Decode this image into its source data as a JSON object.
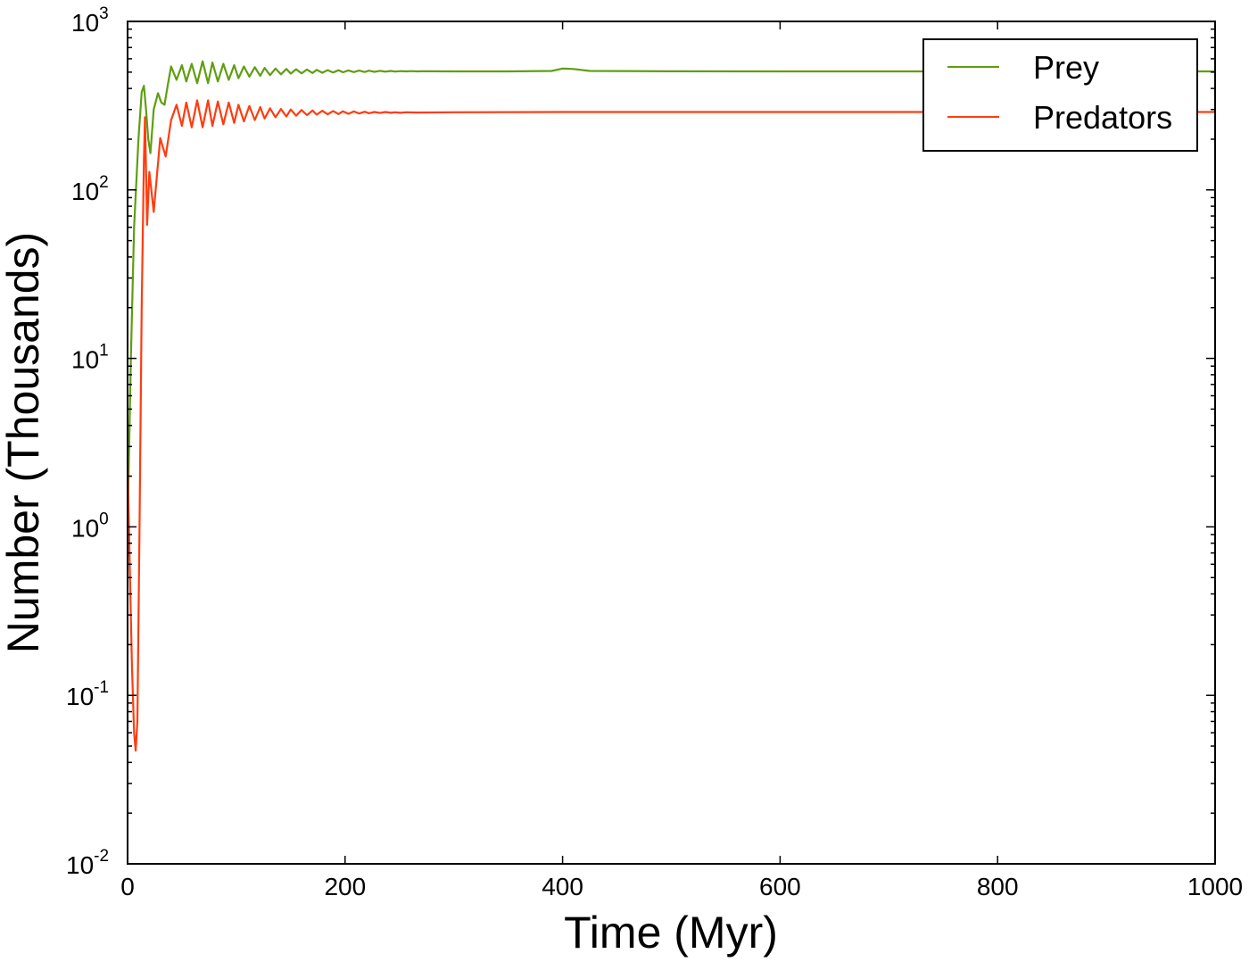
{
  "chart_data": {
    "type": "line",
    "title": "",
    "xlabel": "Time (Myr)",
    "ylabel": "Number (Thousands)",
    "xlim": [
      0,
      1000
    ],
    "ylim": [
      0.01,
      1000
    ],
    "yscale": "log",
    "grid": false,
    "legend_placement": "top-right",
    "x_ticks": [
      0,
      200,
      400,
      600,
      800,
      1000
    ],
    "x_tick_labels": [
      "0",
      "200",
      "400",
      "600",
      "800",
      "1000"
    ],
    "y_ticks": [
      0.01,
      0.1,
      1,
      10,
      100,
      1000
    ],
    "y_tick_labels": [
      {
        "base": "10",
        "exp": "-2"
      },
      {
        "base": "10",
        "exp": "-1"
      },
      {
        "base": "10",
        "exp": "0"
      },
      {
        "base": "10",
        "exp": "1"
      },
      {
        "base": "10",
        "exp": "2"
      },
      {
        "base": "10",
        "exp": "3"
      }
    ],
    "series": [
      {
        "name": "Prey",
        "color": "#5f9e12",
        "x": [
          0,
          3,
          6,
          10,
          13,
          15,
          17,
          19,
          21,
          24,
          28,
          31,
          34,
          37,
          40,
          45,
          50,
          54,
          59,
          64,
          69,
          74,
          78,
          83,
          88,
          93,
          98,
          102,
          107,
          112,
          117,
          122,
          126,
          131,
          136,
          141,
          146,
          150,
          155,
          160,
          165,
          170,
          174,
          179,
          184,
          189,
          194,
          198,
          203,
          208,
          213,
          218,
          222,
          227,
          232,
          237,
          242,
          246,
          251,
          256,
          261,
          266,
          270,
          280,
          300,
          350,
          390,
          400,
          410,
          425,
          500,
          600,
          700,
          800,
          900,
          1000
        ],
        "y": [
          1,
          10,
          60,
          200,
          380,
          415,
          300,
          200,
          165,
          300,
          375,
          330,
          320,
          420,
          540,
          450,
          550,
          440,
          560,
          430,
          580,
          430,
          570,
          440,
          560,
          450,
          550,
          460,
          540,
          470,
          535,
          475,
          530,
          480,
          525,
          485,
          522,
          490,
          520,
          492,
          518,
          494,
          516,
          496,
          514,
          498,
          513,
          499,
          512,
          500,
          511,
          501,
          510,
          502,
          509,
          503,
          508,
          504,
          507,
          505,
          507,
          505,
          506,
          506,
          505,
          505,
          508,
          525,
          522,
          508,
          506,
          505,
          505,
          505,
          505,
          505
        ]
      },
      {
        "name": "Predators",
        "color": "#ff3c0f",
        "x": [
          0,
          2,
          4,
          6,
          7.5,
          9,
          11,
          13,
          15,
          16,
          18,
          20,
          24,
          30,
          35,
          40,
          45,
          50,
          54,
          59,
          64,
          69,
          74,
          78,
          83,
          88,
          93,
          98,
          102,
          107,
          112,
          117,
          122,
          126,
          131,
          136,
          141,
          146,
          150,
          155,
          160,
          165,
          170,
          174,
          179,
          184,
          189,
          194,
          198,
          203,
          208,
          213,
          218,
          222,
          227,
          232,
          237,
          242,
          246,
          251,
          256,
          266,
          300,
          400,
          1000
        ],
        "y": [
          2.5,
          0.6,
          0.15,
          0.06,
          0.047,
          0.07,
          1,
          20,
          150,
          270,
          62,
          128,
          74,
          203,
          158,
          260,
          320,
          240,
          330,
          235,
          340,
          235,
          340,
          240,
          335,
          245,
          330,
          250,
          320,
          255,
          315,
          260,
          310,
          265,
          305,
          270,
          302,
          273,
          300,
          276,
          298,
          278,
          296,
          280,
          295,
          281,
          294,
          282,
          293,
          283,
          292,
          284,
          291,
          285,
          290,
          286,
          290,
          287,
          289,
          287,
          289,
          288,
          289,
          290,
          290
        ]
      }
    ]
  }
}
